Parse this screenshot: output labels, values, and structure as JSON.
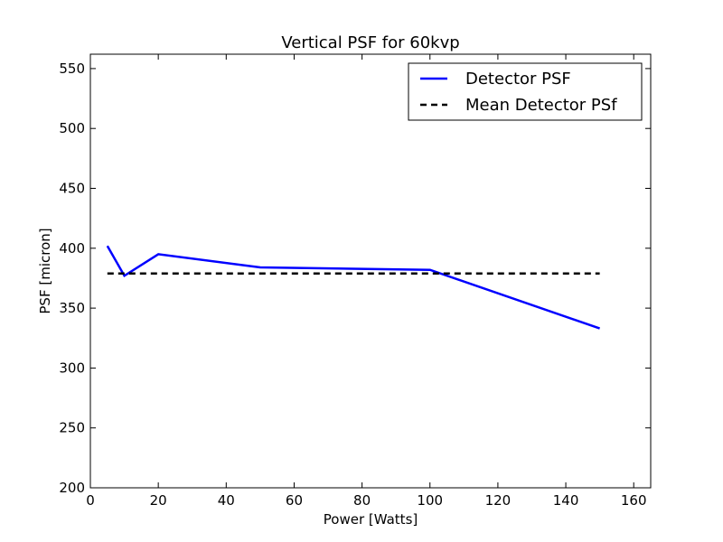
{
  "chart_data": {
    "type": "line",
    "title": "Vertical PSF for 60kvp",
    "xlabel": "Power [Watts]",
    "ylabel": "PSF [micron]",
    "xlim": [
      0,
      165
    ],
    "ylim": [
      200,
      562
    ],
    "xticks": [
      0,
      20,
      40,
      60,
      80,
      100,
      120,
      140,
      160
    ],
    "yticks": [
      200,
      250,
      300,
      350,
      400,
      450,
      500,
      550
    ],
    "grid": false,
    "legend_position": "top-right",
    "series": [
      {
        "name": "Detector PSF",
        "style": "solid",
        "color": "#0000ff",
        "x": [
          5,
          10,
          20,
          50,
          100,
          150
        ],
        "y": [
          402,
          377,
          395,
          384,
          382,
          333
        ]
      },
      {
        "name": "Mean Detector PSf",
        "style": "dashed",
        "color": "#000000",
        "x": [
          5,
          150
        ],
        "y": [
          379,
          379
        ]
      }
    ]
  }
}
